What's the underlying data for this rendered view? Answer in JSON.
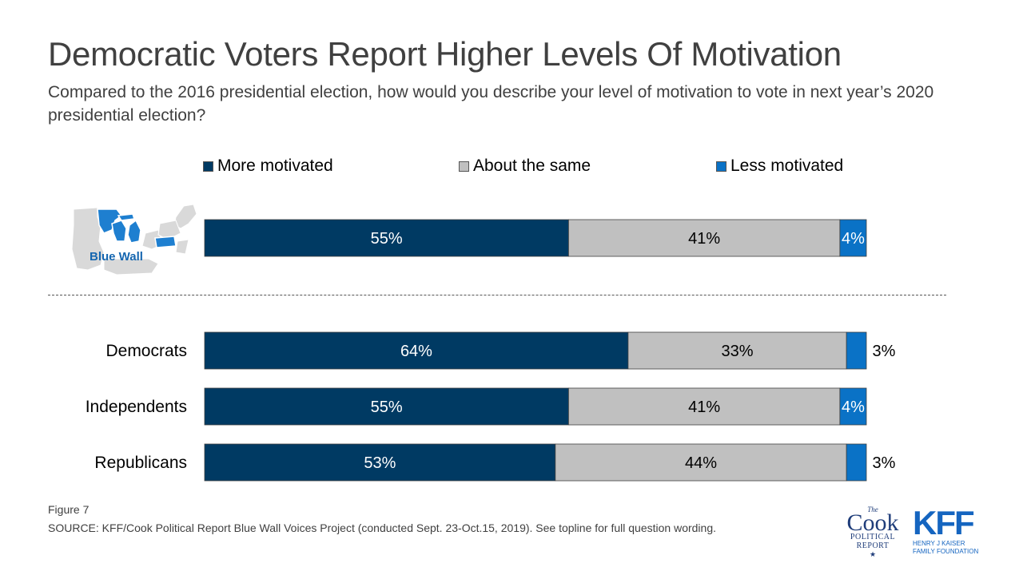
{
  "title": "Democratic Voters Report Higher Levels Of Motivation",
  "subtitle": "Compared to the 2016 presidential election, how would you describe your level of motivation to vote in next year’s 2020 presidential election?",
  "map_label": "Blue Wall",
  "chart_data": {
    "type": "bar",
    "orientation": "horizontal",
    "stacked": true,
    "percent_stacked": true,
    "categories": [
      "Blue Wall",
      "Democrats",
      "Independents",
      "Republicans"
    ],
    "series": [
      {
        "name": "More motivated",
        "color": "#003a63",
        "values": [
          55,
          64,
          55,
          53
        ],
        "labels": [
          "55%",
          "64%",
          "55%",
          "53%"
        ]
      },
      {
        "name": "About the same",
        "color": "#c0c0c0",
        "values": [
          41,
          33,
          41,
          44
        ],
        "labels": [
          "41%",
          "33%",
          "41%",
          "44%"
        ]
      },
      {
        "name": "Less motivated",
        "color": "#0a72c6",
        "values": [
          4,
          3,
          4,
          3
        ],
        "labels": [
          "4%",
          "3%",
          "4%",
          "3%"
        ]
      }
    ],
    "legend_position": "top",
    "grid": false
  },
  "footer": {
    "figure": "Figure 7",
    "source": "SOURCE: KFF/Cook Political Report Blue Wall Voices Project (conducted Sept. 23-Oct.15, 2019). See topline for full question wording."
  },
  "logos": {
    "cook": {
      "the": "The",
      "word": "Cook",
      "line1": "POLITICAL",
      "line2": "REPORT",
      "star": "★"
    },
    "kff": {
      "word": "KFF",
      "line1": "HENRY J KAISER",
      "line2": "FAMILY FOUNDATION"
    }
  }
}
